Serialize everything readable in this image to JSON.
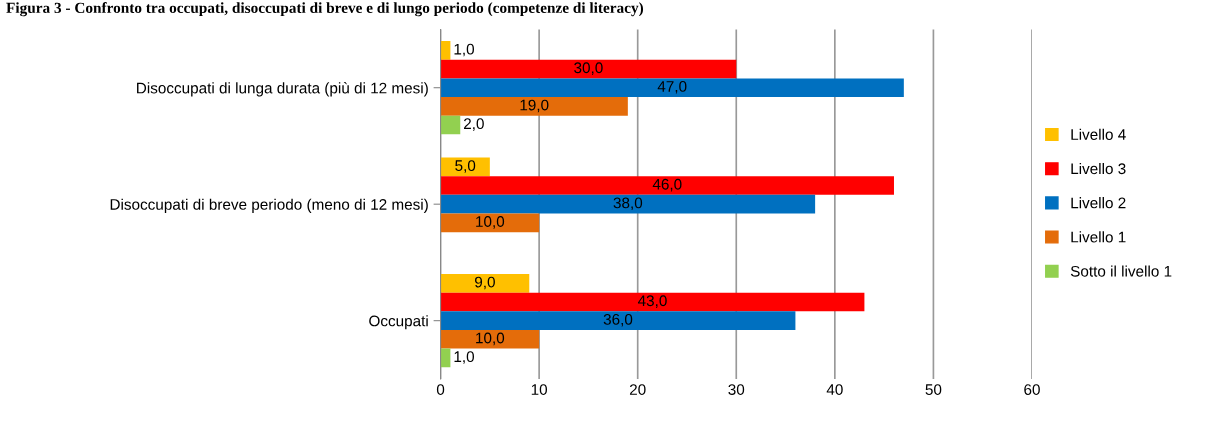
{
  "chart_data": {
    "type": "bar",
    "orientation": "horizontal",
    "title": "Figura 3 - Confronto tra occupati, disoccupati di breve e di lungo periodo (competenze di literacy)",
    "categories": [
      "Disoccupati di lunga durata (più di 12 mesi)",
      "Disoccupati di breve periodo (meno di 12 mesi)",
      "Occupati"
    ],
    "series": [
      {
        "name": "Livello 4",
        "color": "#ffc000",
        "values": [
          1.0,
          5.0,
          9.0
        ],
        "value_labels": [
          "1,0",
          "5,0",
          "9,0"
        ]
      },
      {
        "name": "Livello 3",
        "color": "#ff0000",
        "values": [
          30.0,
          46.0,
          43.0
        ],
        "value_labels": [
          "30,0",
          "46,0",
          "43,0"
        ]
      },
      {
        "name": "Livello 2",
        "color": "#0070c0",
        "values": [
          47.0,
          38.0,
          36.0
        ],
        "value_labels": [
          "47,0",
          "38,0",
          "36,0"
        ]
      },
      {
        "name": "Livello 1",
        "color": "#e46c0a",
        "values": [
          19.0,
          10.0,
          10.0
        ],
        "value_labels": [
          "19,0",
          "10,0",
          "10,0"
        ]
      },
      {
        "name": "Sotto il livello 1",
        "color": "#92d050",
        "values": [
          2.0,
          null,
          1.0
        ],
        "value_labels": [
          "2,0",
          null,
          "1,0"
        ]
      }
    ],
    "xlim": [
      0,
      60
    ],
    "xticks": [
      0,
      10,
      20,
      30,
      40,
      50,
      60
    ],
    "grid": "x",
    "legend": "right"
  }
}
